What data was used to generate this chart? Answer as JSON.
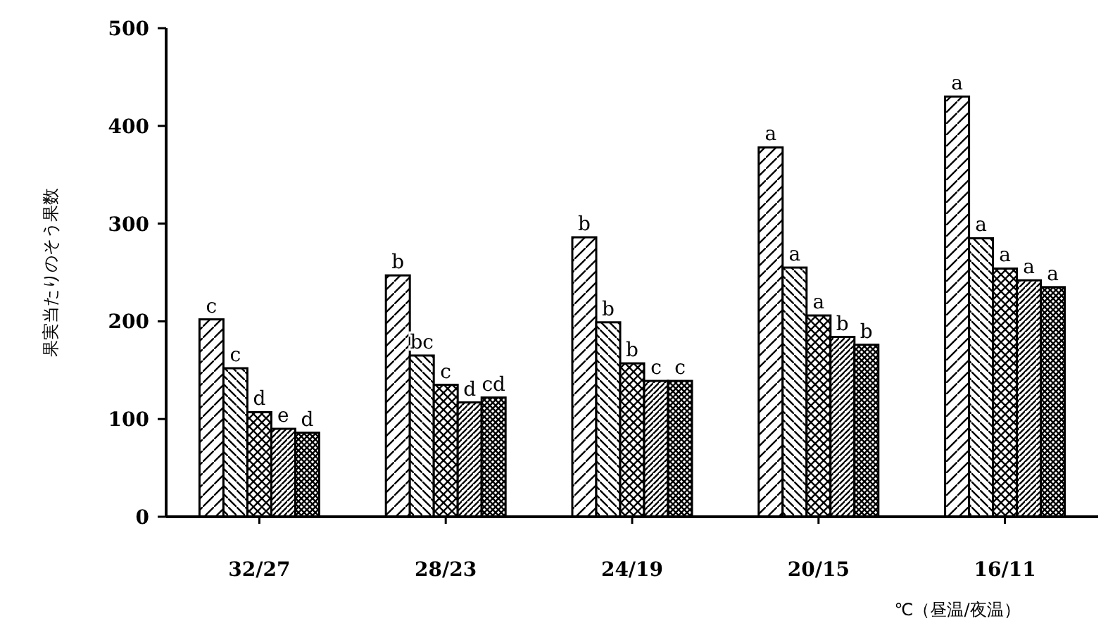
{
  "chart_data": {
    "type": "bar",
    "xlabel": "℃（昼温/夜温）",
    "ylabel": "果実当たりのそう果数",
    "categories": [
      "32/27",
      "28/23",
      "24/19",
      "20/15",
      "16/11"
    ],
    "ylim": [
      0,
      500
    ],
    "yticks": [
      0,
      100,
      200,
      300,
      400,
      500
    ],
    "series": [
      {
        "color": "#000000",
        "values": [
          202,
          247,
          286,
          378,
          430
        ],
        "value_labels": [
          "c",
          "b",
          "b",
          "a",
          "a"
        ]
      },
      {
        "color": "#000000",
        "values": [
          152,
          165,
          199,
          255,
          285
        ],
        "value_labels": [
          "c",
          "bc",
          "b",
          "a",
          "a"
        ]
      },
      {
        "color": "#000000",
        "values": [
          107,
          135,
          157,
          206,
          254
        ],
        "value_labels": [
          "d",
          "c",
          "b",
          "a",
          "a"
        ]
      },
      {
        "color": "#000000",
        "values": [
          90,
          117,
          139,
          184,
          242
        ],
        "value_labels": [
          "e",
          "d",
          "c",
          "b",
          "a"
        ]
      },
      {
        "color": "#000000",
        "values": [
          86,
          122,
          139,
          176,
          235
        ],
        "value_labels": [
          "d",
          "cd",
          "c",
          "b",
          "a"
        ]
      }
    ]
  }
}
